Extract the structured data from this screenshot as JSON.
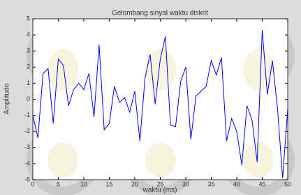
{
  "chart_data": {
    "type": "line",
    "title": "Gelombang sinyal waktu diskrit",
    "xlabel": "waktu (ms)",
    "ylabel": "Amplitudo",
    "x": [
      0,
      1,
      2,
      3,
      4,
      5,
      6,
      7,
      8,
      9,
      10,
      11,
      12,
      13,
      14,
      15,
      16,
      17,
      18,
      19,
      20,
      21,
      22,
      23,
      24,
      25,
      26,
      27,
      28,
      29,
      30,
      31,
      32,
      33,
      34,
      35,
      36,
      37,
      38,
      39,
      40,
      41,
      42,
      43,
      44,
      45,
      46,
      47,
      48,
      49,
      50
    ],
    "series": [
      {
        "color": "#0000ff",
        "values": [
          -1,
          -2.4,
          1.6,
          1.9,
          -1.5,
          2.5,
          2.1,
          -0.4,
          0.6,
          1.0,
          0.6,
          1.6,
          -1.1,
          3.4,
          -1.9,
          -1.5,
          0.8,
          -0.2,
          0.1,
          -0.8,
          0.5,
          -2.6,
          1.3,
          2.8,
          -0.3,
          2.5,
          3.9,
          -1.6,
          -1.7,
          1.1,
          2.0,
          -2.5,
          0.2,
          0.5,
          0.8,
          2.4,
          1.5,
          2.6,
          -2.6,
          -1.2,
          -2.0,
          -4.1,
          -0.4,
          -1.3,
          -3.9,
          4.3,
          0.3,
          2.4,
          -0.6,
          -4.9,
          -0.6
        ]
      }
    ],
    "xlim": [
      0,
      50
    ],
    "xticks": [
      0,
      5,
      10,
      15,
      20,
      25,
      30,
      35,
      40,
      45,
      50
    ],
    "ylim": [
      -5,
      5
    ],
    "yticks": [
      -5,
      -4,
      -3,
      -2,
      -1,
      0,
      1,
      2,
      3,
      4,
      5
    ]
  }
}
